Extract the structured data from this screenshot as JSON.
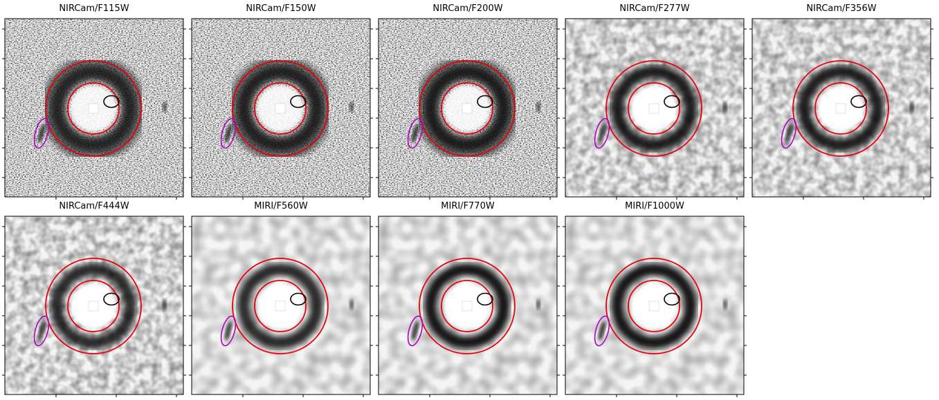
{
  "panels": [
    {
      "title": "NIRCam/F115W"
    },
    {
      "title": "NIRCam/F150W"
    },
    {
      "title": "NIRCam/F200W"
    },
    {
      "title": "NIRCam/F277W"
    },
    {
      "title": "NIRCam/F356W"
    },
    {
      "title": "NIRCam/F444W"
    },
    {
      "title": "MIRI/F560W"
    },
    {
      "title": "MIRI/F770W"
    },
    {
      "title": "MIRI/F1000W"
    }
  ]
}
